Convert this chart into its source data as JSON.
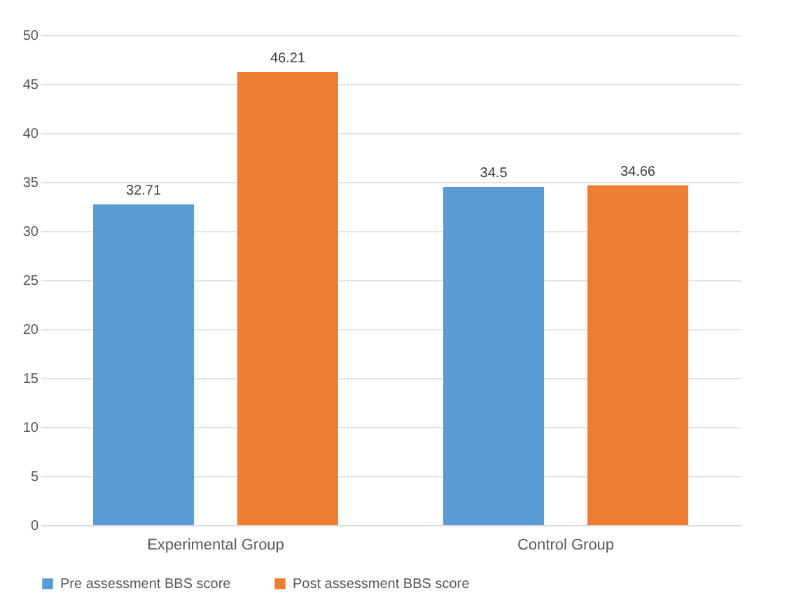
{
  "chart_data": {
    "type": "bar",
    "categories": [
      "Experimental Group",
      "Control Group"
    ],
    "series": [
      {
        "name": "Pre assessment BBS score",
        "color": "#5b9bd5",
        "values": [
          32.71,
          34.5
        ]
      },
      {
        "name": "Post assessment BBS score",
        "color": "#ed7d31",
        "values": [
          46.21,
          34.66
        ]
      }
    ],
    "ylim": [
      0,
      50
    ],
    "yticks": [
      0,
      5,
      10,
      15,
      20,
      25,
      30,
      35,
      40,
      45,
      50
    ],
    "grid": "y",
    "legend": "bottom",
    "data_labels": true
  }
}
